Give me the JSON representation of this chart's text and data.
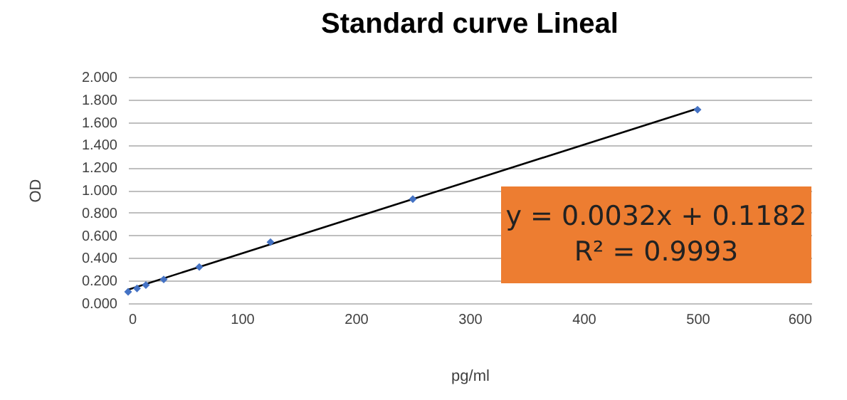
{
  "chart_data": {
    "type": "scatter",
    "title": "Standard curve Lineal",
    "xlabel": "pg/ml",
    "ylabel": "OD",
    "x": [
      0,
      7.8,
      15.6,
      31.25,
      62.5,
      125,
      250,
      500
    ],
    "series": [
      {
        "color": "#4472c4",
        "marker": "diamond",
        "values": [
          0.1,
          0.13,
          0.16,
          0.21,
          0.32,
          0.54,
          0.92,
          1.71
        ]
      },
      {
        "type": "line",
        "color": "#000000",
        "x": [
          0,
          500
        ],
        "values": [
          0.12,
          1.72
        ]
      }
    ],
    "xlim": [
      0,
      600
    ],
    "xticks": [
      0,
      100,
      200,
      300,
      400,
      500,
      600
    ],
    "ylim": [
      0,
      2
    ],
    "yticks": [
      {
        "value": 0,
        "label": "0.000"
      },
      {
        "value": 0.2,
        "label": "0.200"
      },
      {
        "value": 0.4,
        "label": "0.400"
      },
      {
        "value": 0.6,
        "label": "0.600"
      },
      {
        "value": 0.8,
        "label": "0.800"
      },
      {
        "value": 1,
        "label": "1.000"
      },
      {
        "value": 1.2,
        "label": "1.200"
      },
      {
        "value": 1.4,
        "label": "1.400"
      },
      {
        "value": 1.6,
        "label": "1.600"
      },
      {
        "value": 1.8,
        "label": "1.800"
      },
      {
        "value": 2,
        "label": "2.000"
      }
    ],
    "grid": "y",
    "line_style": "solid",
    "annotations": [
      "y = 0.0032x + 0.1182",
      "R² = 0.9993"
    ]
  }
}
